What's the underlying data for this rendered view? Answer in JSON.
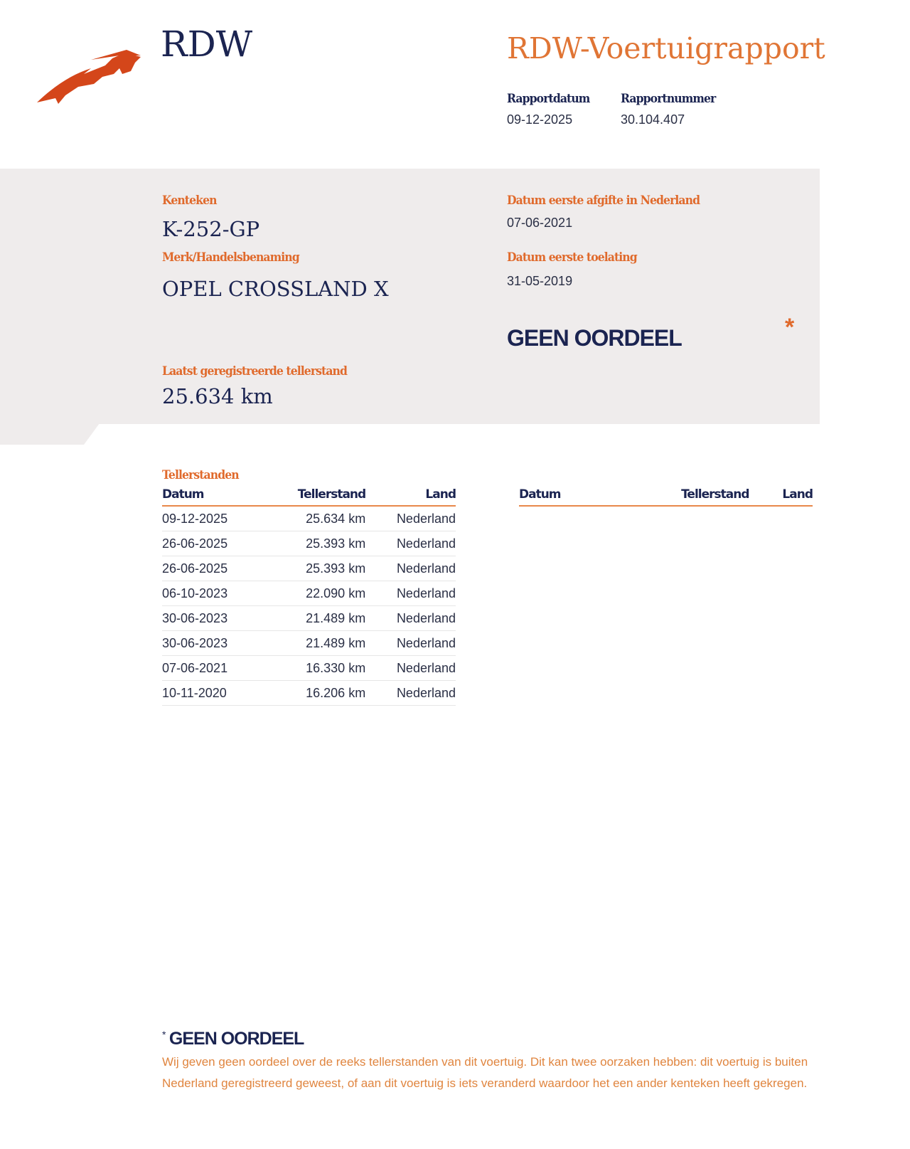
{
  "header": {
    "logo_text": "RDW",
    "report_title": "RDW-Voertuigrapport",
    "report_date_label": "Rapportdatum",
    "report_date": "09-12-2025",
    "report_number_label": "Rapportnummer",
    "report_number": "30.104.407"
  },
  "vehicle": {
    "plate_label": "Kenteken",
    "plate": "K-252-GP",
    "brand_label": "Merk/Handelsbenaming",
    "brand": "OPEL CROSSLAND X",
    "odometer_label": "Laatst geregistreerde tellerstand",
    "odometer": "25.634 km",
    "first_issue_nl_label": "Datum eerste afgifte in Nederland",
    "first_issue_nl": "07-06-2021",
    "first_admission_label": "Datum eerste toelating",
    "first_admission": "31-05-2019",
    "verdict": "GEEN OORDEEL",
    "verdict_marker": "*"
  },
  "odometer_readings": {
    "title": "Tellerstanden",
    "columns": [
      "Datum",
      "Tellerstand",
      "Land"
    ],
    "rows": [
      [
        "09-12-2025",
        "25.634 km",
        "Nederland"
      ],
      [
        "26-06-2025",
        "25.393 km",
        "Nederland"
      ],
      [
        "26-06-2025",
        "25.393 km",
        "Nederland"
      ],
      [
        "06-10-2023",
        "22.090 km",
        "Nederland"
      ],
      [
        "30-06-2023",
        "21.489 km",
        "Nederland"
      ],
      [
        "30-06-2023",
        "21.489 km",
        "Nederland"
      ],
      [
        "07-06-2021",
        "16.330 km",
        "Nederland"
      ],
      [
        "10-11-2020",
        "16.206 km",
        "Nederland"
      ]
    ],
    "columns_right": [
      "Datum",
      "Tellerstand",
      "Land"
    ]
  },
  "footnote": {
    "marker": "*",
    "title": "GEEN OORDEEL",
    "text": "Wij geven geen oordeel over de reeks tellerstanden van dit voertuig. Dit kan twee oorzaken hebben: dit voertuig is buiten Nederland geregistreerd geweest, of aan dit voertuig is iets veranderd waardoor het een ander kenteken heeft gekregen."
  },
  "colors": {
    "navy": "#1b2451",
    "orange": "#e06a2c",
    "logo": "#d4461a",
    "panel": "#efecec"
  }
}
